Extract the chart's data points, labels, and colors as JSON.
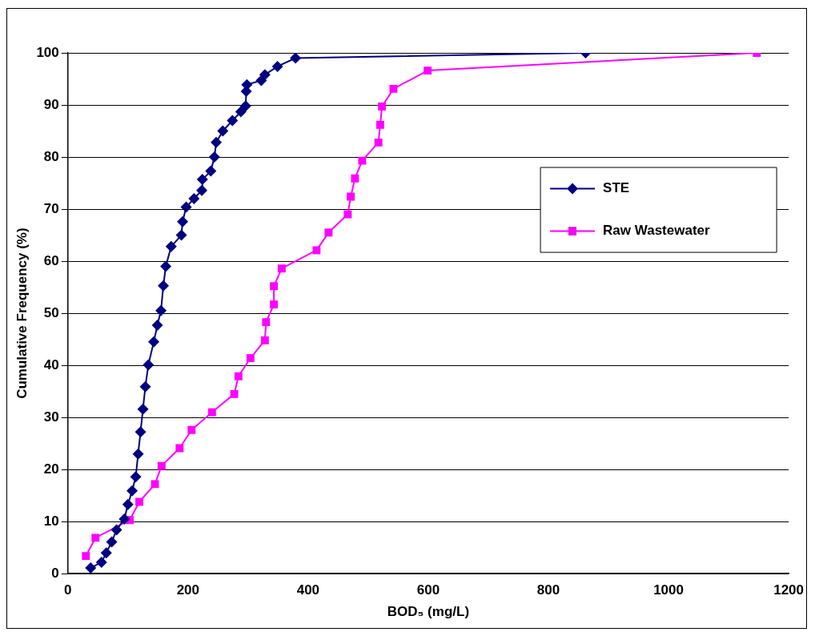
{
  "chart_data": {
    "type": "line",
    "xlabel": "BOD₅ (mg/L)",
    "ylabel": "Cumulative Frequency (%)",
    "xlim": [
      0,
      1200
    ],
    "xticks": [
      0,
      200,
      400,
      600,
      800,
      1000,
      1200
    ],
    "ylim": [
      0,
      100
    ],
    "yticks": [
      0,
      10,
      20,
      30,
      40,
      50,
      60,
      70,
      80,
      90,
      100
    ],
    "grid": "y",
    "legend": "right",
    "series": [
      {
        "name": "STE",
        "color": "#000080",
        "marker": "diamond",
        "x": [
          38,
          56,
          64,
          73,
          81,
          94,
          100,
          107,
          113,
          117,
          121,
          125,
          129,
          134,
          143,
          149,
          155,
          159,
          163,
          172,
          189,
          191,
          197,
          210,
          223,
          224,
          238,
          244,
          247,
          258,
          274,
          288,
          296,
          297,
          298,
          322,
          328,
          349,
          379,
          862
        ],
        "values": [
          1.1,
          2.2,
          4,
          6.1,
          8.4,
          10.5,
          13.3,
          15.9,
          18.6,
          23,
          27.2,
          31.6,
          35.9,
          40.1,
          44.5,
          47.7,
          50.5,
          55.3,
          59,
          62.8,
          65,
          67.6,
          70.4,
          72,
          73.6,
          75.7,
          77.3,
          80,
          82.8,
          85,
          87,
          88.7,
          89.8,
          92.6,
          93.9,
          94.7,
          95.8,
          97.4,
          99,
          100
        ]
      },
      {
        "name": "Raw Wastewater",
        "color": "#ff00ff",
        "marker": "square",
        "x": [
          30,
          46,
          103,
          119,
          145,
          156,
          186,
          206,
          240,
          277,
          284,
          304,
          328,
          330,
          343,
          343,
          356,
          414,
          434,
          466,
          471,
          478,
          490,
          517,
          520,
          523,
          542,
          599,
          1147
        ],
        "values": [
          3.4,
          6.9,
          10.3,
          13.8,
          17.2,
          20.7,
          24.1,
          27.6,
          31,
          34.5,
          37.9,
          41.4,
          44.8,
          48.3,
          51.7,
          55.2,
          58.6,
          62.1,
          65.5,
          69,
          72.4,
          75.9,
          79.3,
          82.8,
          86.2,
          89.7,
          93.1,
          96.6,
          100
        ]
      }
    ]
  }
}
